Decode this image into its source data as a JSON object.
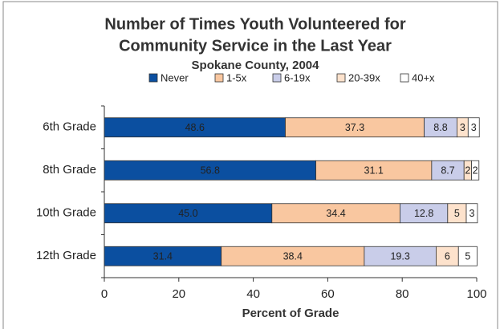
{
  "chart_data": {
    "type": "stacked-bar-horizontal",
    "title": "Number of Times Youth Volunteered for",
    "title_line2": "Community Service in the Last Year",
    "subtitle": "Spokane County, 2004",
    "xlabel": "Percent of Grade",
    "categories": [
      "6th Grade",
      "8th Grade",
      "10th Grade",
      "12th Grade"
    ],
    "series": [
      {
        "name": "Never",
        "color": "#0b4fa0",
        "values": [
          48.6,
          56.8,
          45,
          31.4
        ],
        "value_labels": [
          "48.6",
          "56.8",
          "45.0",
          "31.4"
        ]
      },
      {
        "name": "1-5x",
        "color": "#f9c7a0",
        "values": [
          37.3,
          31.1,
          34.4,
          38.4
        ]
      },
      {
        "name": "6-19x",
        "color": "#c9cde9",
        "values": [
          8.8,
          8.7,
          12.8,
          19.3
        ]
      },
      {
        "name": "20-39x",
        "color": "#fde2cc",
        "values": [
          3,
          2,
          5,
          6
        ]
      },
      {
        "name": "40+x",
        "color": "#ffffff",
        "values": [
          3,
          2,
          3,
          5
        ]
      }
    ],
    "xlim": [
      0,
      100
    ],
    "xticks": [
      0,
      20,
      40,
      60,
      80,
      100
    ],
    "grid": false,
    "legend": "top"
  }
}
